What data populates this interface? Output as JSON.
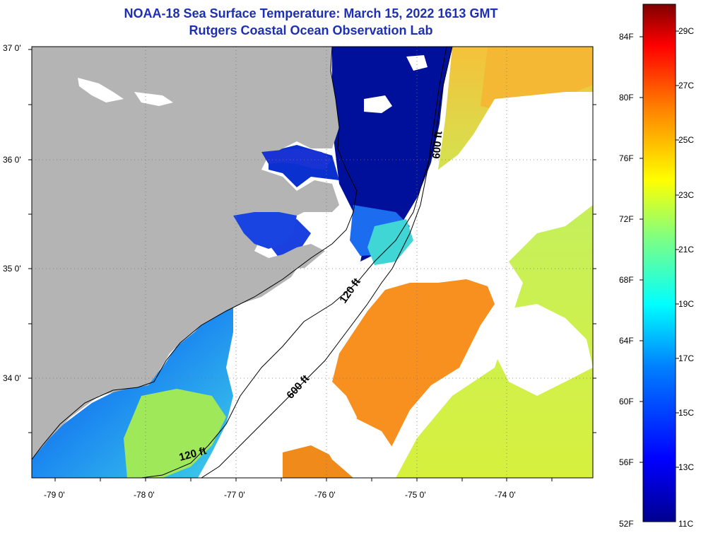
{
  "title": {
    "line1": "NOAA-18 Sea Surface Temperature:  March 15, 2022 1613 GMT",
    "line2": "Rutgers Coastal Ocean Observation Lab"
  },
  "colors": {
    "land": "#b4b4b4",
    "cloud": "#ffffff",
    "title": "#1d2fb5",
    "contour": "#000000"
  },
  "axes": {
    "lat_labels": [
      "37 0'",
      "36 0'",
      "35 0'",
      "34 0'"
    ],
    "lon_labels": [
      "-79 0'",
      "-78 0'",
      "-77 0'",
      "-76 0'",
      "-75 0'",
      "-74 0'"
    ]
  },
  "contour_labels": {
    "label_600_north": "600 ft",
    "label_120_mid": "120 ft",
    "label_600_south": "600 ft",
    "label_120_south": "120 ft"
  },
  "colorbar": {
    "fahrenheit": [
      "84F",
      "80F",
      "76F",
      "72F",
      "68F",
      "64F",
      "60F",
      "56F",
      "52F"
    ],
    "celsius": [
      "29C",
      "27C",
      "25C",
      "23C",
      "21C",
      "19C",
      "17C",
      "15C",
      "13C",
      "11C"
    ],
    "range_f": [
      52,
      86
    ],
    "stops": [
      "#00008f",
      "#0000ff",
      "#0080ff",
      "#00ffff",
      "#80ff80",
      "#ffff00",
      "#ff8000",
      "#ff0000",
      "#800000"
    ]
  }
}
